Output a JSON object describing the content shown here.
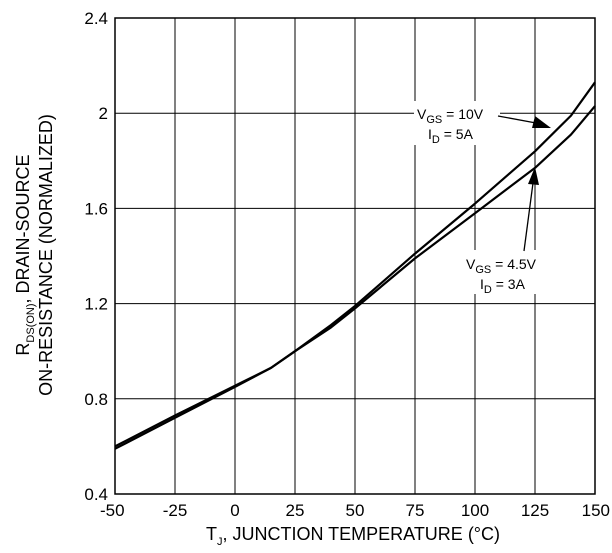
{
  "chart_data": {
    "type": "line",
    "xlabel": {
      "pre": "T",
      "sub": "J",
      "post": ", JUNCTION TEMPERATURE (°C)"
    },
    "ylabel": {
      "line1": {
        "pre": "R",
        "sub": "DS(ON)",
        "post": ", DRAIN-SOURCE"
      },
      "line2": "ON-RESISTANCE (NORMALIZED)"
    },
    "xlim": [
      -50,
      150
    ],
    "ylim": [
      0.4,
      2.4
    ],
    "x_ticks": [
      "-50",
      "-25",
      "0",
      "25",
      "50",
      "75",
      "100",
      "125",
      "150"
    ],
    "y_ticks": [
      "0.4",
      "0.8",
      "1.2",
      "1.6",
      "2",
      "2.4"
    ],
    "grid": true,
    "series": [
      {
        "points": [
          [
            -50,
            0.59
          ],
          [
            -25,
            0.72
          ],
          [
            0,
            0.85
          ],
          [
            15,
            0.93
          ],
          [
            25,
            1.0
          ],
          [
            40,
            1.11
          ],
          [
            50,
            1.19
          ],
          [
            75,
            1.41
          ],
          [
            100,
            1.62
          ],
          [
            125,
            1.84
          ],
          [
            140,
            1.99
          ],
          [
            150,
            2.13
          ]
        ],
        "annotation": {
          "line1": {
            "pre": "V",
            "sub": "GS",
            "post": " = 10V"
          },
          "line2": {
            "pre": "I",
            "sub": "D",
            "post": " = 5A"
          }
        }
      },
      {
        "points": [
          [
            -50,
            0.6
          ],
          [
            -25,
            0.73
          ],
          [
            0,
            0.855
          ],
          [
            15,
            0.93
          ],
          [
            25,
            1.0
          ],
          [
            40,
            1.1
          ],
          [
            50,
            1.18
          ],
          [
            75,
            1.39
          ],
          [
            100,
            1.58
          ],
          [
            125,
            1.77
          ],
          [
            140,
            1.91
          ],
          [
            150,
            2.03
          ]
        ],
        "annotation": {
          "line1": {
            "pre": "V",
            "sub": "GS",
            "post": " = 4.5V"
          },
          "line2": {
            "pre": "I",
            "sub": "D",
            "post": " = 3A"
          }
        }
      }
    ]
  }
}
